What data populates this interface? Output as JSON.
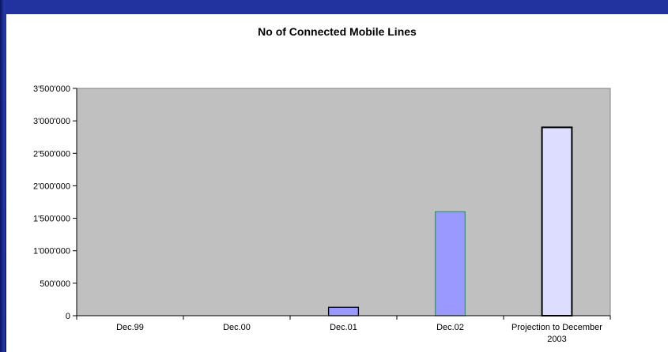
{
  "chart_data": {
    "type": "bar",
    "title": "No of Connected Mobile Lines",
    "xlabel": "",
    "ylabel": "",
    "categories": [
      "Dec.99",
      "Dec.00",
      "Dec.01",
      "Dec.02",
      "Projection to December 2003"
    ],
    "category_lines": [
      [
        "Dec.99"
      ],
      [
        "Dec.00"
      ],
      [
        "Dec.01"
      ],
      [
        "Dec.02"
      ],
      [
        "Projection to December",
        "2003"
      ]
    ],
    "values": [
      0,
      0,
      130000,
      1600000,
      2900000
    ],
    "ylim": [
      0,
      3500000
    ],
    "y_ticks": [
      0,
      500000,
      1000000,
      1500000,
      2000000,
      2500000,
      3000000,
      3500000
    ],
    "y_tick_labels": [
      "0",
      "500'000",
      "1'000'000",
      "1'500'000",
      "2'000'000",
      "2'500'000",
      "3'000'000",
      "3'500'000"
    ],
    "grid": false,
    "legend": "none",
    "colors": {
      "plot_area": "#c0c0c0",
      "bar_fill": [
        "#9999ff",
        "#9999ff",
        "#9999ff",
        "#9999ff",
        "#ddddff"
      ],
      "bar_stroke": [
        "#000000",
        "#000000",
        "#000000",
        "#339966",
        "#000000"
      ],
      "axis": "#000000",
      "plot_border": "#808080"
    }
  }
}
